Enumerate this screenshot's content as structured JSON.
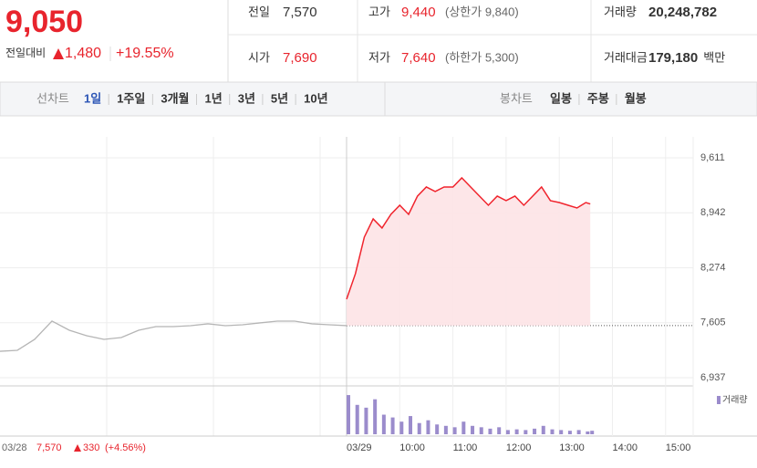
{
  "header": {
    "price": "9,050",
    "change_label": "전일대비",
    "change": "1,480",
    "change_pct": "+19.55%",
    "stats": [
      {
        "label": "전일",
        "value": "7,570"
      },
      {
        "label": "고가",
        "value": "9,440",
        "note": "(상한가 9,840)"
      },
      {
        "label": "거래량",
        "value": "20,248,782"
      },
      {
        "label": "시가",
        "value": "7,690"
      },
      {
        "label": "저가",
        "value": "7,640",
        "note": "(하한가 5,300)"
      },
      {
        "label": "거래대금",
        "value": "179,180",
        "unit": "백만"
      }
    ]
  },
  "tabs": {
    "line_label": "선차트",
    "line_tabs": [
      "1일",
      "1주일",
      "3개월",
      "1년",
      "3년",
      "5년",
      "10년"
    ],
    "candle_label": "봉차트",
    "candle_tabs": [
      "일봉",
      "주봉",
      "월봉"
    ]
  },
  "footer": {
    "date": "03/28",
    "close": "7,570",
    "change": "330",
    "change_pct": "(+4.56%)"
  },
  "chart_data": {
    "type": "line",
    "ylim": [
      6848,
      9866
    ],
    "yticks": [
      {
        "value": 6937,
        "label": "6,937"
      },
      {
        "value": 7605,
        "label": "7,605"
      },
      {
        "value": 8274,
        "label": "8,274"
      },
      {
        "value": 8942,
        "label": "8,942"
      },
      {
        "value": 9611,
        "label": "9,611"
      }
    ],
    "xticks": [
      {
        "value": "09:00",
        "label": "03/29"
      },
      "10:00",
      "11:00",
      "12:00",
      "13:00",
      "14:00",
      "15:00"
    ],
    "reference_line": 7570,
    "previous_day": {
      "color": "#b5b5b5",
      "values": [
        7258,
        7270,
        7403,
        7625,
        7514,
        7447,
        7403,
        7425,
        7514,
        7558,
        7558,
        7569,
        7592,
        7569,
        7580,
        7603,
        7625,
        7625,
        7592,
        7580,
        7570
      ]
    },
    "x": [
      "09:00",
      "09:10",
      "09:20",
      "09:30",
      "09:40",
      "09:50",
      "10:00",
      "10:10",
      "10:20",
      "10:30",
      "10:40",
      "10:50",
      "11:00",
      "11:10",
      "11:20",
      "11:30",
      "11:40",
      "11:50",
      "12:00",
      "12:10",
      "12:20",
      "12:30",
      "12:40",
      "12:50",
      "13:00",
      "13:10",
      "13:20",
      "13:30",
      "13:35"
    ],
    "series": [
      {
        "color": "#f0242d",
        "values": [
          7891,
          8202,
          8646,
          8868,
          8757,
          8923,
          9034,
          8923,
          9145,
          9256,
          9201,
          9256,
          9256,
          9367,
          9256,
          9145,
          9034,
          9145,
          9090,
          9145,
          9034,
          9145,
          9256,
          9090,
          9067,
          9034,
          9001,
          9067,
          9050
        ]
      },
      {
        "name": "거래량",
        "color": "#9b8ccc",
        "values": [
          2800000,
          2100000,
          1900000,
          2500000,
          1400000,
          1200000,
          900000,
          1300000,
          800000,
          1000000,
          700000,
          600000,
          500000,
          900000,
          600000,
          500000,
          400000,
          500000,
          300000,
          350000,
          300000,
          400000,
          600000,
          350000,
          300000,
          250000,
          300000,
          200000,
          250000
        ]
      }
    ],
    "y2lim": [
      0,
      3000000
    ]
  }
}
